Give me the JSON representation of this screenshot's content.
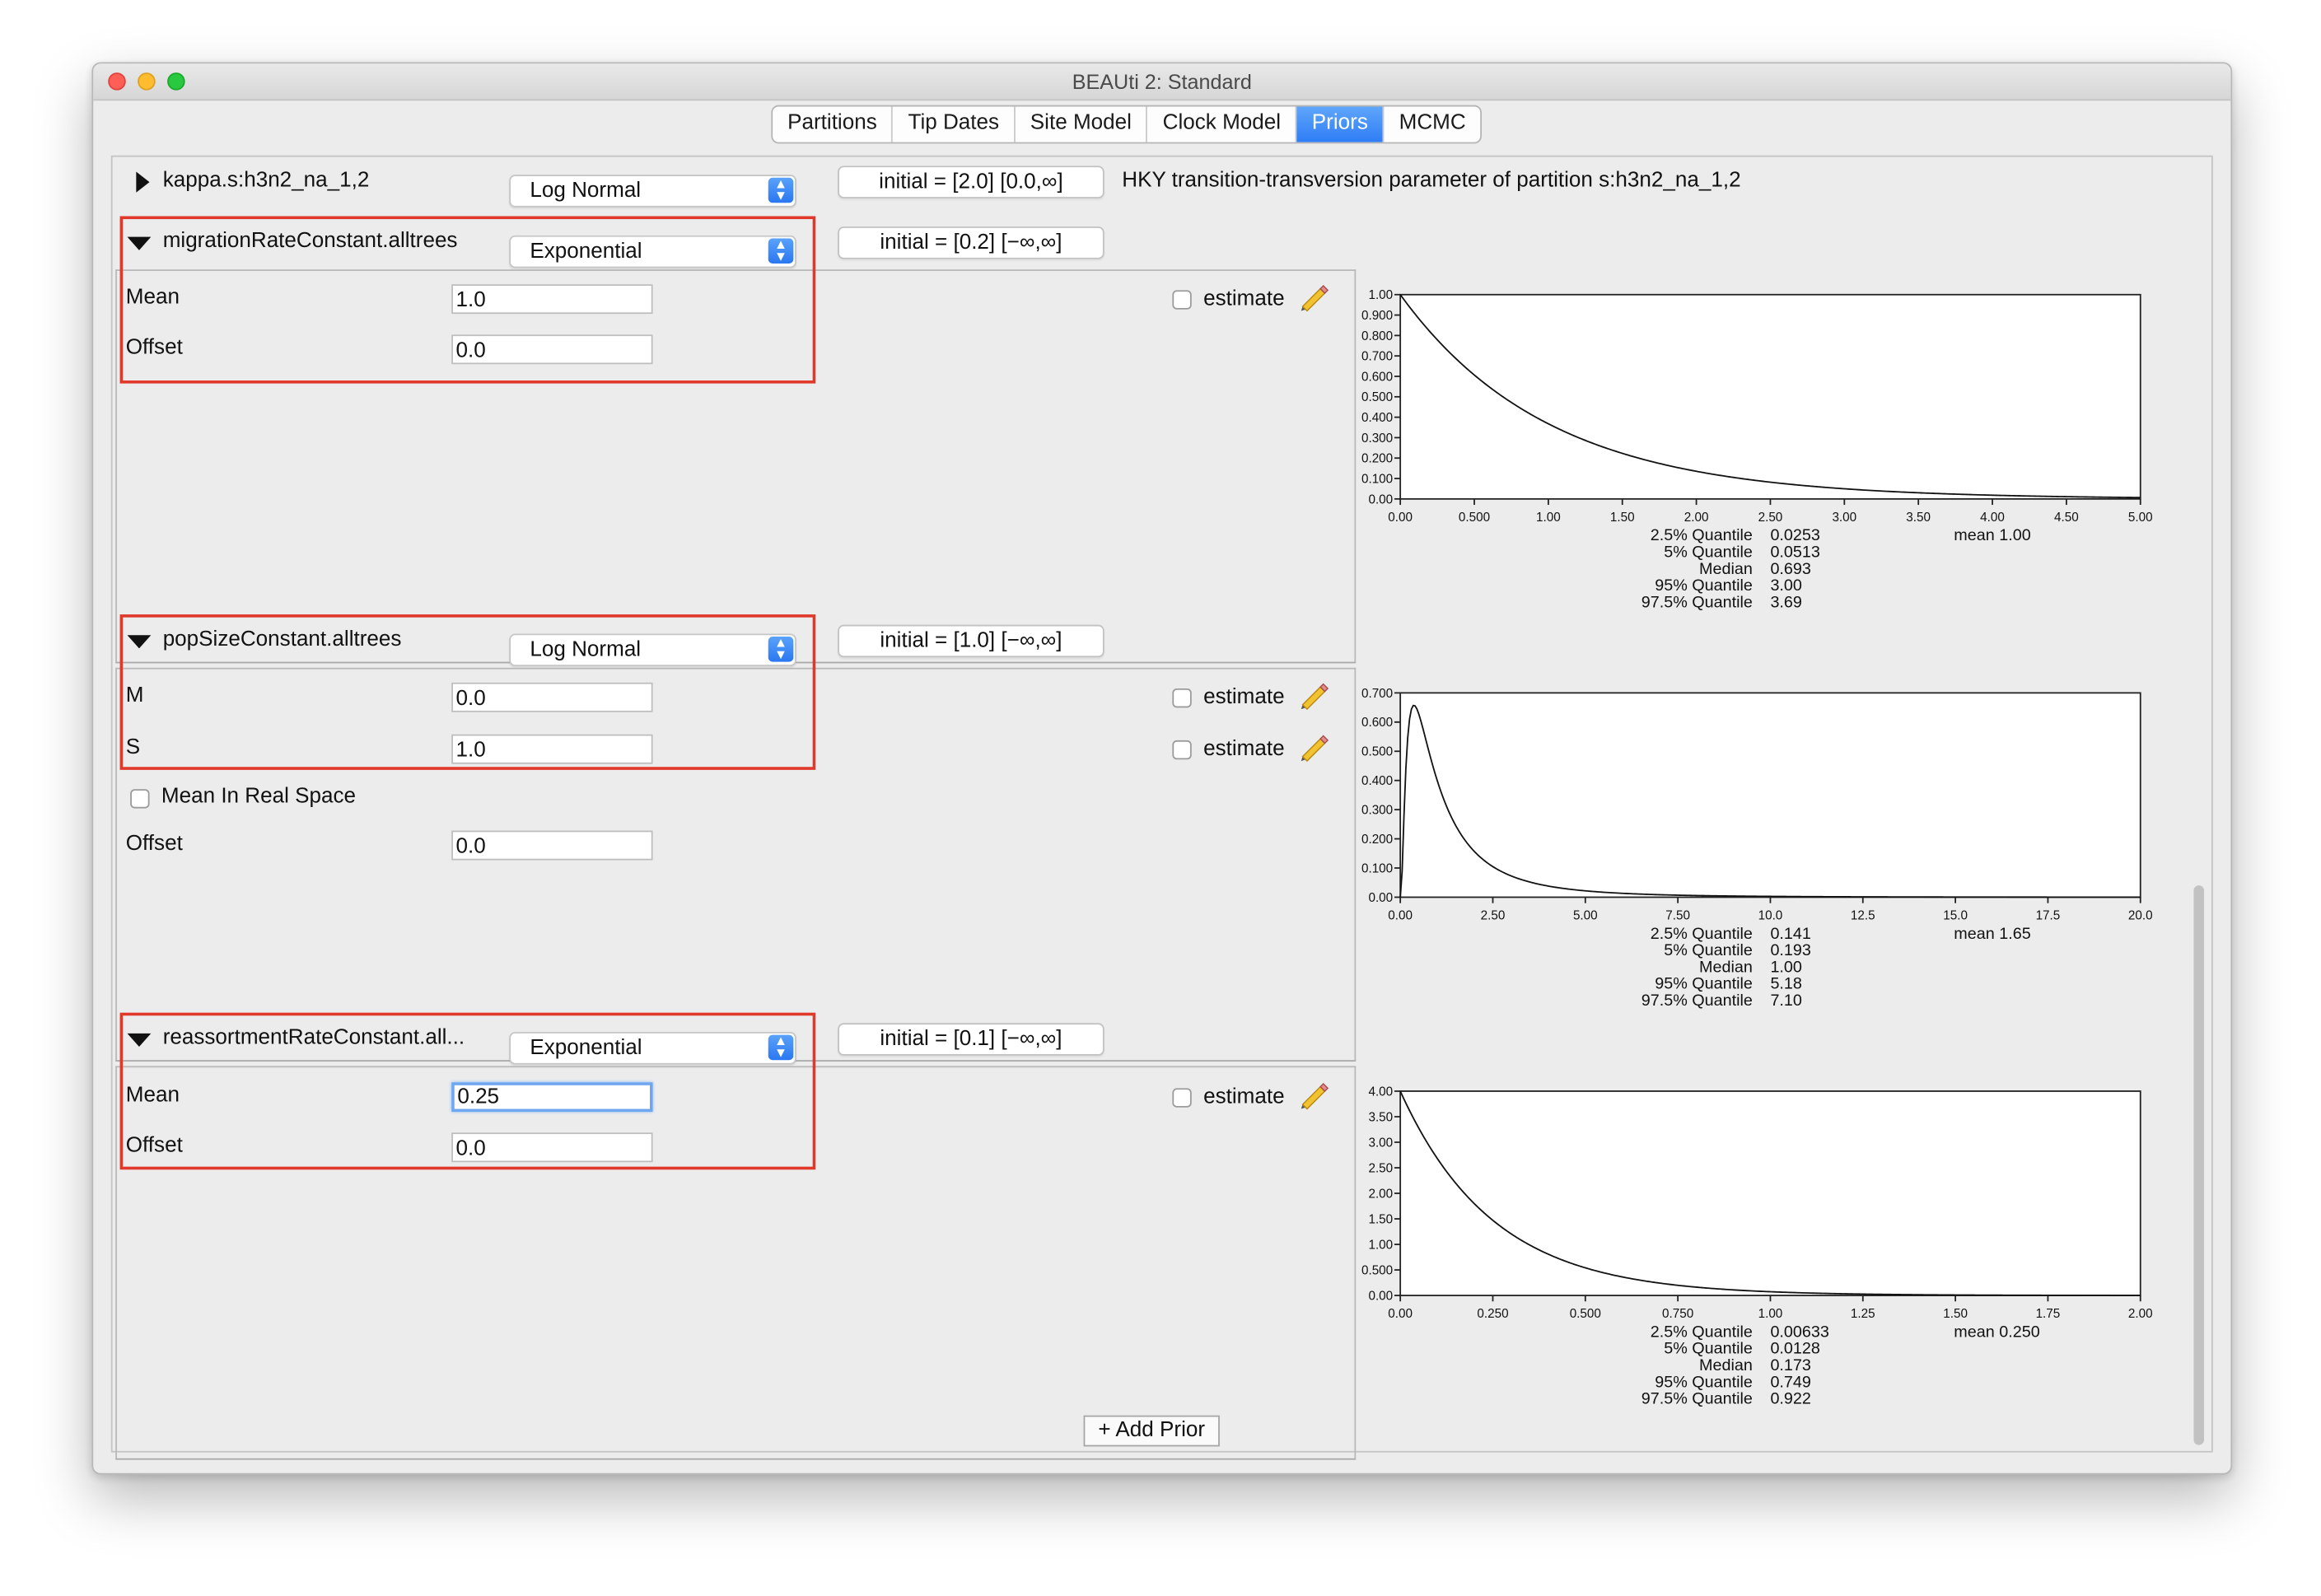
{
  "window": {
    "title": "BEAUti 2: Standard"
  },
  "tabs": [
    {
      "label": "Partitions"
    },
    {
      "label": "Tip Dates"
    },
    {
      "label": "Site Model"
    },
    {
      "label": "Clock Model"
    },
    {
      "label": "Priors",
      "active": true
    },
    {
      "label": "MCMC"
    }
  ],
  "priors": {
    "kappa": {
      "name": "kappa.s:h3n2_na_1,2",
      "distribution": "Log Normal",
      "initial": "initial = [2.0] [0.0,∞]",
      "description": "HKY transition-transversion parameter of partition s:h3n2_na_1,2",
      "expanded": false
    },
    "migration": {
      "name": "migrationRateConstant.alltrees",
      "distribution": "Exponential",
      "initial": "initial = [0.2] [−∞,∞]",
      "expanded": true,
      "params": [
        {
          "label": "Mean",
          "value": "1.0"
        },
        {
          "label": "Offset",
          "value": "0.0"
        }
      ],
      "estimate_label": "estimate",
      "estimate_checked": false
    },
    "popsize": {
      "name": "popSizeConstant.alltrees",
      "distribution": "Log Normal",
      "initial": "initial = [1.0] [−∞,∞]",
      "expanded": true,
      "params": [
        {
          "label": "M",
          "value": "0.0"
        },
        {
          "label": "S",
          "value": "1.0"
        },
        {
          "label": "Offset",
          "value": "0.0"
        }
      ],
      "mean_in_real_space_label": "Mean In Real Space",
      "mean_in_real_space_checked": false,
      "estimate_label": "estimate",
      "estimate_checked": false
    },
    "reassortment": {
      "name": "reassortmentRateConstant.all...",
      "distribution": "Exponential",
      "initial": "initial = [0.1] [−∞,∞]",
      "expanded": true,
      "params": [
        {
          "label": "Mean",
          "value": "0.25"
        },
        {
          "label": "Offset",
          "value": "0.0"
        }
      ],
      "estimate_label": "estimate",
      "estimate_checked": false
    }
  },
  "add_prior_label": "+ Add Prior",
  "colors": {
    "highlight_box": "#e0382a",
    "active_tab": "#2f7df6",
    "window_bg": "#ececec"
  },
  "chart_data": [
    {
      "type": "line",
      "distribution": "exponential",
      "params": {
        "mean": 1.0
      },
      "xlim": [
        0,
        5
      ],
      "ylim": [
        0,
        1.0
      ],
      "xticks": [
        "0.00",
        "0.500",
        "1.00",
        "1.50",
        "2.00",
        "2.50",
        "3.00",
        "3.50",
        "4.00",
        "4.50",
        "5.00"
      ],
      "yticks": [
        "0.00",
        "0.100",
        "0.200",
        "0.300",
        "0.400",
        "0.500",
        "0.600",
        "0.700",
        "0.800",
        "0.900",
        "1.00"
      ],
      "stats": [
        {
          "label": "2.5% Quantile",
          "value": "0.0253"
        },
        {
          "label": "5% Quantile",
          "value": "0.0513"
        },
        {
          "label": "Median",
          "value": "0.693"
        },
        {
          "label": "95% Quantile",
          "value": "3.00"
        },
        {
          "label": "97.5% Quantile",
          "value": "3.69"
        }
      ],
      "mean_text": "mean 1.00"
    },
    {
      "type": "line",
      "distribution": "lognormal",
      "params": {
        "M": 0.0,
        "S": 1.0
      },
      "xlim": [
        0,
        20
      ],
      "ylim": [
        0,
        0.7
      ],
      "xticks": [
        "0.00",
        "2.50",
        "5.00",
        "7.50",
        "10.0",
        "12.5",
        "15.0",
        "17.5",
        "20.0"
      ],
      "yticks": [
        "0.00",
        "0.100",
        "0.200",
        "0.300",
        "0.400",
        "0.500",
        "0.600",
        "0.700"
      ],
      "stats": [
        {
          "label": "2.5% Quantile",
          "value": "0.141"
        },
        {
          "label": "5% Quantile",
          "value": "0.193"
        },
        {
          "label": "Median",
          "value": "1.00"
        },
        {
          "label": "95% Quantile",
          "value": "5.18"
        },
        {
          "label": "97.5% Quantile",
          "value": "7.10"
        }
      ],
      "mean_text": "mean 1.65"
    },
    {
      "type": "line",
      "distribution": "exponential",
      "params": {
        "mean": 0.25
      },
      "xlim": [
        0,
        2
      ],
      "ylim": [
        0,
        4.0
      ],
      "xticks": [
        "0.00",
        "0.250",
        "0.500",
        "0.750",
        "1.00",
        "1.25",
        "1.50",
        "1.75",
        "2.00"
      ],
      "yticks": [
        "0.00",
        "0.500",
        "1.00",
        "1.50",
        "2.00",
        "2.50",
        "3.00",
        "3.50",
        "4.00"
      ],
      "stats": [
        {
          "label": "2.5% Quantile",
          "value": "0.00633"
        },
        {
          "label": "5% Quantile",
          "value": "0.0128"
        },
        {
          "label": "Median",
          "value": "0.173"
        },
        {
          "label": "95% Quantile",
          "value": "0.749"
        },
        {
          "label": "97.5% Quantile",
          "value": "0.922"
        }
      ],
      "mean_text": "mean 0.250"
    }
  ]
}
